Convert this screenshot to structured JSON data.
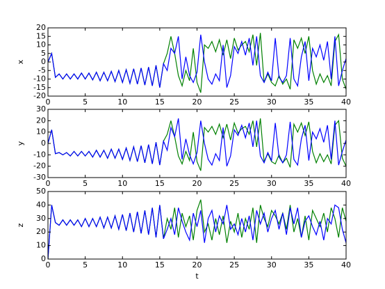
{
  "chart_data": [
    {
      "type": "line",
      "ylabel": "x",
      "x": [
        0,
        0.5,
        1,
        1.5,
        2,
        2.5,
        3,
        3.5,
        4,
        4.5,
        5,
        5.5,
        6,
        6.5,
        7,
        7.5,
        8,
        8.5,
        9,
        9.5,
        10,
        10.5,
        11,
        11.5,
        12,
        12.5,
        13,
        13.5,
        14,
        14.5,
        15,
        15.5,
        16,
        16.5,
        17,
        17.5,
        18,
        18.5,
        19,
        19.5,
        20,
        20.5,
        21,
        21.5,
        22,
        22.5,
        23,
        23.5,
        24,
        24.5,
        25,
        25.5,
        26,
        26.5,
        27,
        27.5,
        28,
        28.5,
        29,
        29.5,
        30,
        30.5,
        31,
        31.5,
        32,
        32.5,
        33,
        33.5,
        34,
        34.5,
        35,
        35.5,
        36,
        36.5,
        37,
        37.5,
        38,
        38.5,
        39,
        39.5,
        40
      ],
      "xlim": [
        0,
        40
      ],
      "xticks": [
        0,
        5,
        10,
        15,
        20,
        25,
        30,
        35,
        40
      ],
      "ylim": [
        -20,
        20
      ],
      "yticks": [
        -20,
        -15,
        -10,
        -5,
        0,
        5,
        10,
        15,
        20
      ],
      "series": [
        {
          "color": "#008000",
          "values": [
            0,
            5,
            -9,
            -7,
            -10,
            -7,
            -10,
            -7,
            -10,
            -6.5,
            -10,
            -6.5,
            -10.5,
            -6,
            -11,
            -6,
            -11,
            -5.5,
            -11.5,
            -5,
            -12,
            -4.5,
            -12.5,
            -4,
            -13,
            -3.5,
            -13.5,
            -3,
            -14,
            -2,
            -15,
            -1,
            5,
            15,
            5,
            -8,
            -14,
            -5,
            -11,
            8,
            -12,
            -18,
            10,
            8,
            12,
            6,
            13,
            4,
            13,
            2,
            14,
            7,
            10,
            12,
            6,
            16,
            -2,
            17,
            -12,
            -7,
            -12,
            -14,
            -8,
            -13,
            -10,
            -16,
            13,
            8,
            14,
            5,
            15,
            -5,
            -13,
            -7,
            -12,
            -8,
            -14,
            12,
            16,
            -10,
            -16
          ]
        },
        {
          "color": "#0000ff",
          "values": [
            0,
            5,
            -9,
            -7,
            -10,
            -7,
            -10,
            -7,
            -10,
            -6.5,
            -10,
            -6.5,
            -10.5,
            -6,
            -11,
            -6,
            -11,
            -5.5,
            -11.5,
            -5,
            -12,
            -4.5,
            -12.5,
            -4,
            -13,
            -3.5,
            -13.5,
            -3,
            -14,
            -2,
            -15,
            -1,
            -5,
            8,
            5,
            15,
            -10,
            3,
            -8,
            -12,
            -6,
            16,
            0,
            -10,
            -13,
            -7,
            -11,
            10,
            -15,
            -8,
            9,
            5,
            12,
            4,
            14,
            -2,
            15,
            -8,
            -12,
            -6,
            -11,
            14,
            -9,
            -12,
            -8,
            14,
            -10,
            -14,
            3,
            12,
            -11,
            8,
            3,
            10,
            1,
            12,
            -10,
            15,
            -14,
            -5,
            2
          ]
        }
      ]
    },
    {
      "type": "line",
      "ylabel": "y",
      "x": [
        0,
        0.5,
        1,
        1.5,
        2,
        2.5,
        3,
        3.5,
        4,
        4.5,
        5,
        5.5,
        6,
        6.5,
        7,
        7.5,
        8,
        8.5,
        9,
        9.5,
        10,
        10.5,
        11,
        11.5,
        12,
        12.5,
        13,
        13.5,
        14,
        14.5,
        15,
        15.5,
        16,
        16.5,
        17,
        17.5,
        18,
        18.5,
        19,
        19.5,
        20,
        20.5,
        21,
        21.5,
        22,
        22.5,
        23,
        23.5,
        24,
        24.5,
        25,
        25.5,
        26,
        26.5,
        27,
        27.5,
        28,
        28.5,
        29,
        29.5,
        30,
        30.5,
        31,
        31.5,
        32,
        32.5,
        33,
        33.5,
        34,
        34.5,
        35,
        35.5,
        36,
        36.5,
        37,
        37.5,
        38,
        38.5,
        39,
        39.5,
        40
      ],
      "xlim": [
        0,
        40
      ],
      "xticks": [
        0,
        5,
        10,
        15,
        20,
        25,
        30,
        35,
        40
      ],
      "ylim": [
        -30,
        30
      ],
      "yticks": [
        -30,
        -20,
        -10,
        0,
        10,
        20,
        30
      ],
      "series": [
        {
          "color": "#008000",
          "values": [
            0,
            12,
            -9,
            -8,
            -10,
            -8,
            -11,
            -7,
            -11,
            -7,
            -11,
            -7,
            -12,
            -6,
            -12,
            -6,
            -13,
            -5,
            -13,
            -5,
            -14,
            -4,
            -15,
            -3,
            -16,
            -2,
            -17,
            -1,
            -18,
            1,
            -19,
            2,
            8,
            20,
            6,
            -11,
            -18,
            -7,
            -15,
            10,
            -16,
            -24,
            14,
            10,
            15,
            8,
            17,
            5,
            17,
            3,
            18,
            9,
            13,
            15,
            8,
            20,
            -3,
            22,
            -16,
            -9,
            -16,
            -18,
            -10,
            -17,
            -13,
            -21,
            17,
            10,
            18,
            7,
            19,
            -7,
            -17,
            -9,
            -16,
            -10,
            -18,
            16,
            20,
            -13,
            -20
          ]
        },
        {
          "color": "#0000ff",
          "values": [
            0,
            12,
            -9,
            -8,
            -10,
            -8,
            -11,
            -7,
            -11,
            -7,
            -11,
            -7,
            -12,
            -6,
            -12,
            -6,
            -13,
            -5,
            -13,
            -5,
            -14,
            -4,
            -15,
            -3,
            -16,
            -2,
            -17,
            -1,
            -18,
            1,
            -19,
            2,
            -6,
            14,
            6,
            22,
            -14,
            4,
            -10,
            -18,
            -8,
            20,
            0,
            -14,
            -19,
            -9,
            -15,
            14,
            -20,
            -11,
            12,
            7,
            16,
            5,
            18,
            -3,
            20,
            -11,
            -17,
            -8,
            -15,
            18,
            -12,
            -17,
            -10,
            19,
            -14,
            -19,
            4,
            16,
            -15,
            10,
            4,
            13,
            1,
            16,
            -14,
            20,
            -19,
            -7,
            3
          ]
        }
      ]
    },
    {
      "type": "line",
      "ylabel": "z",
      "xlabel": "t",
      "x": [
        0,
        0.5,
        1,
        1.5,
        2,
        2.5,
        3,
        3.5,
        4,
        4.5,
        5,
        5.5,
        6,
        6.5,
        7,
        7.5,
        8,
        8.5,
        9,
        9.5,
        10,
        10.5,
        11,
        11.5,
        12,
        12.5,
        13,
        13.5,
        14,
        14.5,
        15,
        15.5,
        16,
        16.5,
        17,
        17.5,
        18,
        18.5,
        19,
        19.5,
        20,
        20.5,
        21,
        21.5,
        22,
        22.5,
        23,
        23.5,
        24,
        24.5,
        25,
        25.5,
        26,
        26.5,
        27,
        27.5,
        28,
        28.5,
        29,
        29.5,
        30,
        30.5,
        31,
        31.5,
        32,
        32.5,
        33,
        33.5,
        34,
        34.5,
        35,
        35.5,
        36,
        36.5,
        37,
        37.5,
        38,
        38.5,
        39,
        39.5,
        40
      ],
      "xlim": [
        0,
        40
      ],
      "xticks": [
        0,
        5,
        10,
        15,
        20,
        25,
        30,
        35,
        40
      ],
      "ylim": [
        0,
        50
      ],
      "yticks": [
        0,
        10,
        20,
        30,
        40,
        50
      ],
      "series": [
        {
          "color": "#008000",
          "values": [
            0,
            40,
            27,
            25,
            29,
            25,
            29,
            25,
            29,
            24,
            30,
            24,
            30,
            24,
            31,
            23,
            31,
            23,
            32,
            22,
            33,
            21,
            34,
            20,
            35,
            19,
            36,
            18,
            38,
            16,
            40,
            15,
            30,
            22,
            38,
            16,
            34,
            24,
            32,
            14,
            36,
            44,
            20,
            26,
            14,
            30,
            18,
            32,
            12,
            28,
            20,
            34,
            16,
            30,
            22,
            38,
            12,
            40,
            30,
            24,
            36,
            32,
            26,
            34,
            22,
            40,
            20,
            30,
            16,
            32,
            14,
            36,
            30,
            24,
            34,
            20,
            38,
            30,
            16,
            38,
            28
          ]
        },
        {
          "color": "#0000ff",
          "values": [
            0,
            40,
            27,
            25,
            29,
            25,
            29,
            25,
            29,
            24,
            30,
            24,
            30,
            24,
            31,
            23,
            31,
            23,
            32,
            22,
            33,
            21,
            34,
            20,
            35,
            19,
            36,
            18,
            38,
            16,
            40,
            15,
            22,
            30,
            18,
            38,
            28,
            20,
            14,
            34,
            24,
            36,
            12,
            30,
            36,
            20,
            32,
            26,
            40,
            22,
            26,
            18,
            30,
            20,
            32,
            14,
            36,
            26,
            34,
            20,
            30,
            36,
            22,
            34,
            18,
            38,
            26,
            38,
            16,
            28,
            32,
            24,
            18,
            28,
            14,
            30,
            26,
            40,
            38,
            22,
            12
          ]
        }
      ]
    }
  ]
}
